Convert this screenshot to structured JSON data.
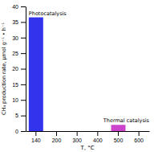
{
  "chart_data": {
    "type": "bar",
    "categories": [
      "140",
      "200",
      "300",
      "400",
      "500",
      "600"
    ],
    "values": [
      36.5,
      null,
      null,
      null,
      2.0,
      null
    ],
    "colors": [
      "#3333ee",
      null,
      null,
      null,
      "#cc44cc",
      null
    ],
    "xlabel": "T, °C",
    "ylabel": "CH₄ production rate, μmol g⁻¹ • h⁻¹",
    "ylim": [
      0,
      40
    ],
    "yticks": [
      0,
      5,
      10,
      15,
      20,
      25,
      30,
      35,
      40
    ],
    "grid": false,
    "annotations": [
      {
        "text": "Photocatalysis",
        "x": "140",
        "y": 37.0
      },
      {
        "text": "Thermal catalysis",
        "x": "500",
        "y": 2.5
      }
    ]
  }
}
